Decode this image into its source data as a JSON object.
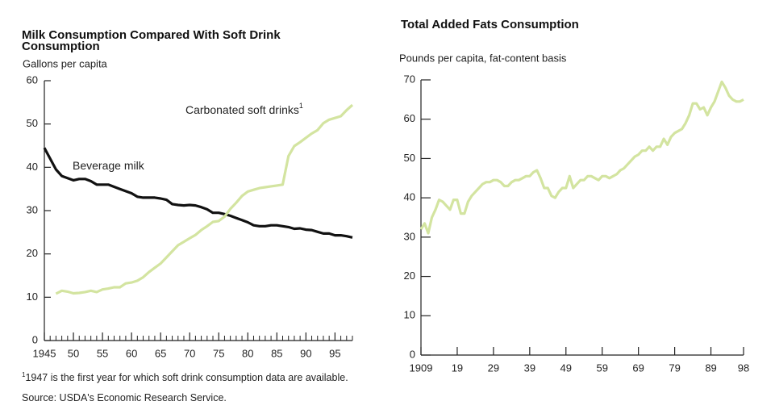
{
  "chart_data": [
    {
      "type": "line",
      "title": "Milk Consumption Compared With Soft Drink Consumption",
      "y_label": "Gallons per capita",
      "xlim": [
        1945,
        1998
      ],
      "xticks": [
        1945,
        {
          "value": 1950,
          "label": "50"
        },
        {
          "value": 1955,
          "label": "55"
        },
        {
          "value": 1960,
          "label": "60"
        },
        {
          "value": 1965,
          "label": "65"
        },
        {
          "value": 1970,
          "label": "70"
        },
        {
          "value": 1975,
          "label": "75"
        },
        {
          "value": 1980,
          "label": "80"
        },
        {
          "value": 1985,
          "label": "85"
        },
        {
          "value": 1990,
          "label": "90"
        },
        {
          "value": 1995,
          "label": "95"
        }
      ],
      "xminorticks": [
        1946,
        1947,
        1948,
        1949,
        1951,
        1952,
        1953,
        1954,
        1956,
        1957,
        1958,
        1959,
        1961,
        1962,
        1963,
        1964,
        1966,
        1967,
        1968,
        1969,
        1971,
        1972,
        1973,
        1974,
        1976,
        1977,
        1978,
        1979,
        1981,
        1982,
        1983,
        1984,
        1986,
        1987,
        1988,
        1989,
        1991,
        1992,
        1993,
        1994,
        1996,
        1997,
        1998
      ],
      "ylim": [
        0,
        60
      ],
      "yticks": [
        0,
        10,
        20,
        30,
        40,
        50,
        60
      ],
      "series": [
        {
          "name": "Beverage milk",
          "color": "#111111",
          "x": [
            1945,
            1946,
            1947,
            1948,
            1949,
            1950,
            1951,
            1952,
            1953,
            1954,
            1955,
            1956,
            1957,
            1958,
            1959,
            1960,
            1961,
            1962,
            1963,
            1964,
            1965,
            1966,
            1967,
            1968,
            1969,
            1970,
            1971,
            1972,
            1973,
            1974,
            1975,
            1976,
            1977,
            1978,
            1979,
            1980,
            1981,
            1982,
            1983,
            1984,
            1985,
            1986,
            1987,
            1988,
            1989,
            1990,
            1991,
            1992,
            1993,
            1994,
            1995,
            1996,
            1997,
            1998
          ],
          "values": [
            44.5,
            42,
            39.5,
            38,
            37.5,
            37,
            37.3,
            37.3,
            36.8,
            36,
            36,
            36,
            35.5,
            35,
            34.5,
            34,
            33.2,
            33,
            33,
            33,
            32.8,
            32.5,
            31.5,
            31.3,
            31.2,
            31.3,
            31.2,
            30.8,
            30.3,
            29.5,
            29.5,
            29.2,
            28.8,
            28.3,
            27.8,
            27.3,
            26.6,
            26.4,
            26.4,
            26.6,
            26.6,
            26.4,
            26.2,
            25.8,
            25.9,
            25.6,
            25.5,
            25.1,
            24.7,
            24.7,
            24.3,
            24.3,
            24.1,
            23.8
          ]
        },
        {
          "name": "Carbonated soft drinks",
          "name_note": "1",
          "color": "#d3e4a0",
          "x": [
            1947,
            1948,
            1949,
            1950,
            1951,
            1952,
            1953,
            1954,
            1955,
            1956,
            1957,
            1958,
            1959,
            1960,
            1961,
            1962,
            1963,
            1964,
            1965,
            1966,
            1967,
            1968,
            1969,
            1970,
            1971,
            1972,
            1973,
            1974,
            1975,
            1976,
            1977,
            1978,
            1979,
            1980,
            1981,
            1982,
            1983,
            1984,
            1985,
            1986,
            1987,
            1988,
            1989,
            1990,
            1991,
            1992,
            1993,
            1994,
            1995,
            1996,
            1997,
            1998
          ],
          "values": [
            10.8,
            11.5,
            11.3,
            10.9,
            11,
            11.2,
            11.5,
            11.2,
            11.8,
            12,
            12.3,
            12.3,
            13.2,
            13.4,
            13.8,
            14.6,
            15.8,
            16.8,
            17.8,
            19.2,
            20.6,
            22,
            22.8,
            23.6,
            24.4,
            25.5,
            26.4,
            27.4,
            27.6,
            28.6,
            30.4,
            31.8,
            33.4,
            34.4,
            34.8,
            35.2,
            35.4,
            35.6,
            35.8,
            36,
            42.6,
            44.9,
            45.8,
            46.8,
            47.8,
            48.6,
            50.2,
            51,
            51.4,
            51.8,
            53.2,
            54.4
          ]
        }
      ],
      "footnote": {
        "marker": "1",
        "text": "1947 is the first year for which soft drink consumption data are available."
      },
      "source": "Source:  USDA's Economic Research Service."
    },
    {
      "type": "line",
      "title": "Total Added Fats Consumption",
      "y_label": "Pounds per capita, fat-content basis",
      "xlim": [
        1909,
        1998
      ],
      "xticks": [
        1909,
        {
          "value": 1919,
          "label": "19"
        },
        {
          "value": 1929,
          "label": "29"
        },
        {
          "value": 1939,
          "label": "39"
        },
        {
          "value": 1949,
          "label": "49"
        },
        {
          "value": 1959,
          "label": "59"
        },
        {
          "value": 1969,
          "label": "69"
        },
        {
          "value": 1979,
          "label": "79"
        },
        {
          "value": 1989,
          "label": "89"
        },
        {
          "value": 1998,
          "label": "98"
        }
      ],
      "ylim": [
        0,
        70
      ],
      "yticks": [
        0,
        10,
        20,
        30,
        40,
        50,
        60,
        70
      ],
      "series": [
        {
          "color": "#d3e4a0",
          "x": [
            1909,
            1910,
            1911,
            1912,
            1913,
            1914,
            1915,
            1916,
            1917,
            1918,
            1919,
            1920,
            1921,
            1922,
            1923,
            1924,
            1925,
            1926,
            1927,
            1928,
            1929,
            1930,
            1931,
            1932,
            1933,
            1934,
            1935,
            1936,
            1937,
            1938,
            1939,
            1940,
            1941,
            1942,
            1943,
            1944,
            1945,
            1946,
            1947,
            1948,
            1949,
            1950,
            1951,
            1952,
            1953,
            1954,
            1955,
            1956,
            1957,
            1958,
            1959,
            1960,
            1961,
            1962,
            1963,
            1964,
            1965,
            1966,
            1967,
            1968,
            1969,
            1970,
            1971,
            1972,
            1973,
            1974,
            1975,
            1976,
            1977,
            1978,
            1979,
            1980,
            1981,
            1982,
            1983,
            1984,
            1985,
            1986,
            1987,
            1988,
            1989,
            1990,
            1991,
            1992,
            1993,
            1994,
            1995,
            1996,
            1997,
            1998
          ],
          "values": [
            32,
            33.5,
            31,
            35,
            37,
            39.5,
            39,
            38,
            37,
            39.5,
            39.5,
            36,
            36,
            39,
            40.5,
            41.5,
            42.5,
            43.5,
            44,
            44,
            44.5,
            44.5,
            44,
            43,
            43,
            44,
            44.5,
            44.5,
            45,
            45.5,
            45.5,
            46.5,
            47,
            45,
            42.5,
            42.5,
            40.5,
            40,
            41.5,
            42.5,
            42.5,
            45.5,
            42.5,
            43.5,
            44.5,
            44.5,
            45.5,
            45.5,
            45,
            44.5,
            45.5,
            45.5,
            45,
            45.5,
            46,
            47,
            47.5,
            48.5,
            49.5,
            50.5,
            51,
            52,
            52,
            53,
            52,
            53,
            53,
            55,
            53.5,
            55.5,
            56.5,
            57,
            57.5,
            59,
            61,
            64,
            64,
            62.5,
            63,
            61,
            63,
            64.5,
            67,
            69.5,
            68,
            66,
            65,
            64.5,
            64.5,
            65
          ]
        }
      ]
    }
  ]
}
